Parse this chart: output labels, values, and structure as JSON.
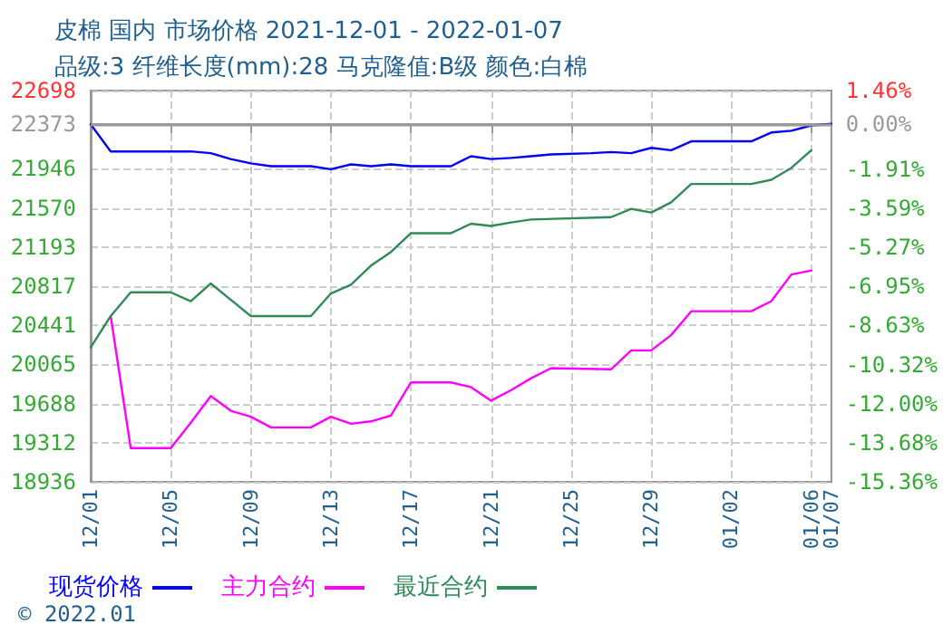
{
  "chart_data": {
    "type": "line",
    "title": "皮棉 国内 市场价格 2021-12-01 - 2022-01-07",
    "subtitle": "品级:3 纤维长度(mm):28 马克隆值:B级 颜色:白棉",
    "xlim": [
      "2021-12-01",
      "2022-01-07"
    ],
    "xticks": [
      {
        "value": "2021-12-01",
        "label": "12/01"
      },
      {
        "value": "2021-12-05",
        "label": "12/05"
      },
      {
        "value": "2021-12-09",
        "label": "12/09"
      },
      {
        "value": "2021-12-13",
        "label": "12/13"
      },
      {
        "value": "2021-12-17",
        "label": "12/17"
      },
      {
        "value": "2021-12-21",
        "label": "12/21"
      },
      {
        "value": "2021-12-25",
        "label": "12/25"
      },
      {
        "value": "2021-12-29",
        "label": "12/29"
      },
      {
        "value": "2022-01-02",
        "label": "01/02"
      },
      {
        "value": "2022-01-06",
        "label": "01/06"
      },
      {
        "value": "2022-01-07",
        "label": "01/07"
      }
    ],
    "ylim": [
      18936,
      22698
    ],
    "yticks": [
      18936,
      19312,
      19688,
      20065,
      20441,
      20817,
      21193,
      21570,
      21946,
      22373,
      22698
    ],
    "y2lim": [
      -15.36,
      1.46
    ],
    "y2ticks": [
      {
        "value": -15.36,
        "label": "-15.36%"
      },
      {
        "value": -13.68,
        "label": "-13.68%"
      },
      {
        "value": -12.0,
        "label": "-12.00%"
      },
      {
        "value": -10.32,
        "label": "-10.32%"
      },
      {
        "value": -8.63,
        "label": "-8.63%"
      },
      {
        "value": -6.95,
        "label": "-6.95%"
      },
      {
        "value": -5.27,
        "label": "-5.27%"
      },
      {
        "value": -3.59,
        "label": "-3.59%"
      },
      {
        "value": -1.91,
        "label": "-1.91%"
      },
      {
        "value": 0,
        "label": "0.00%"
      },
      {
        "value": 1.46,
        "label": "1.46%"
      }
    ],
    "ref_lines": [
      {
        "axis": "y",
        "value": 22373,
        "color": "#999999"
      }
    ],
    "grid": true,
    "legend": "bottom left",
    "marker": "none",
    "line_style": "solid",
    "annotations": [
      "© 2022.01"
    ],
    "series": [
      {
        "name": "现货价格",
        "color": "#0000ff",
        "x": [
          "2021-12-01",
          "2021-12-02",
          "2021-12-05",
          "2021-12-06",
          "2021-12-07",
          "2021-12-08",
          "2021-12-09",
          "2021-12-10",
          "2021-12-12",
          "2021-12-13",
          "2021-12-14",
          "2021-12-15",
          "2021-12-16",
          "2021-12-17",
          "2021-12-19",
          "2021-12-20",
          "2021-12-21",
          "2021-12-22",
          "2021-12-23",
          "2021-12-24",
          "2021-12-26",
          "2021-12-27",
          "2021-12-28",
          "2021-12-29",
          "2021-12-30",
          "2021-12-31",
          "2022-01-03",
          "2022-01-04",
          "2022-01-05",
          "2022-01-06",
          "2022-01-07"
        ],
        "values": [
          22373,
          22113,
          22113,
          22113,
          22096,
          22039,
          21998,
          21971,
          21971,
          21942,
          21988,
          21971,
          21988,
          21971,
          21971,
          22067,
          22039,
          22050,
          22067,
          22084,
          22096,
          22107,
          22096,
          22147,
          22124,
          22210,
          22210,
          22295,
          22312,
          22363,
          22378
        ]
      },
      {
        "name": "主力合约",
        "color": "#ff00ff",
        "x": [
          "2021-12-02",
          "2021-12-03",
          "2021-12-05",
          "2021-12-06",
          "2021-12-07",
          "2021-12-08",
          "2021-12-09",
          "2021-12-10",
          "2021-12-12",
          "2021-12-13",
          "2021-12-14",
          "2021-12-15",
          "2021-12-16",
          "2021-12-17",
          "2021-12-19",
          "2021-12-20",
          "2021-12-21",
          "2021-12-22",
          "2021-12-23",
          "2021-12-24",
          "2021-12-27",
          "2021-12-28",
          "2021-12-29",
          "2021-12-30",
          "2021-12-31",
          "2022-01-03",
          "2022-01-04",
          "2022-01-05",
          "2022-01-06"
        ],
        "values": [
          20530,
          19260,
          19260,
          19505,
          19761,
          19619,
          19562,
          19460,
          19460,
          19562,
          19494,
          19517,
          19574,
          19892,
          19892,
          19847,
          19716,
          19818,
          19932,
          20029,
          20018,
          20200,
          20200,
          20348,
          20576,
          20576,
          20673,
          20929,
          20968
        ]
      },
      {
        "name": "最近合约",
        "color": "#2e8b57",
        "x": [
          "2021-12-01",
          "2021-12-02",
          "2021-12-03",
          "2021-12-05",
          "2021-12-06",
          "2021-12-07",
          "2021-12-09",
          "2021-12-12",
          "2021-12-13",
          "2021-12-14",
          "2021-12-15",
          "2021-12-16",
          "2021-12-17",
          "2021-12-19",
          "2021-12-20",
          "2021-12-21",
          "2021-12-22",
          "2021-12-23",
          "2021-12-27",
          "2021-12-28",
          "2021-12-29",
          "2021-12-30",
          "2021-12-31",
          "2022-01-03",
          "2022-01-04",
          "2022-01-05",
          "2022-01-06"
        ],
        "values": [
          20229,
          20530,
          20758,
          20758,
          20673,
          20843,
          20530,
          20530,
          20747,
          20832,
          21015,
          21146,
          21327,
          21327,
          21418,
          21396,
          21430,
          21458,
          21481,
          21561,
          21526,
          21623,
          21800,
          21800,
          21840,
          21954,
          22125
        ]
      }
    ]
  }
}
